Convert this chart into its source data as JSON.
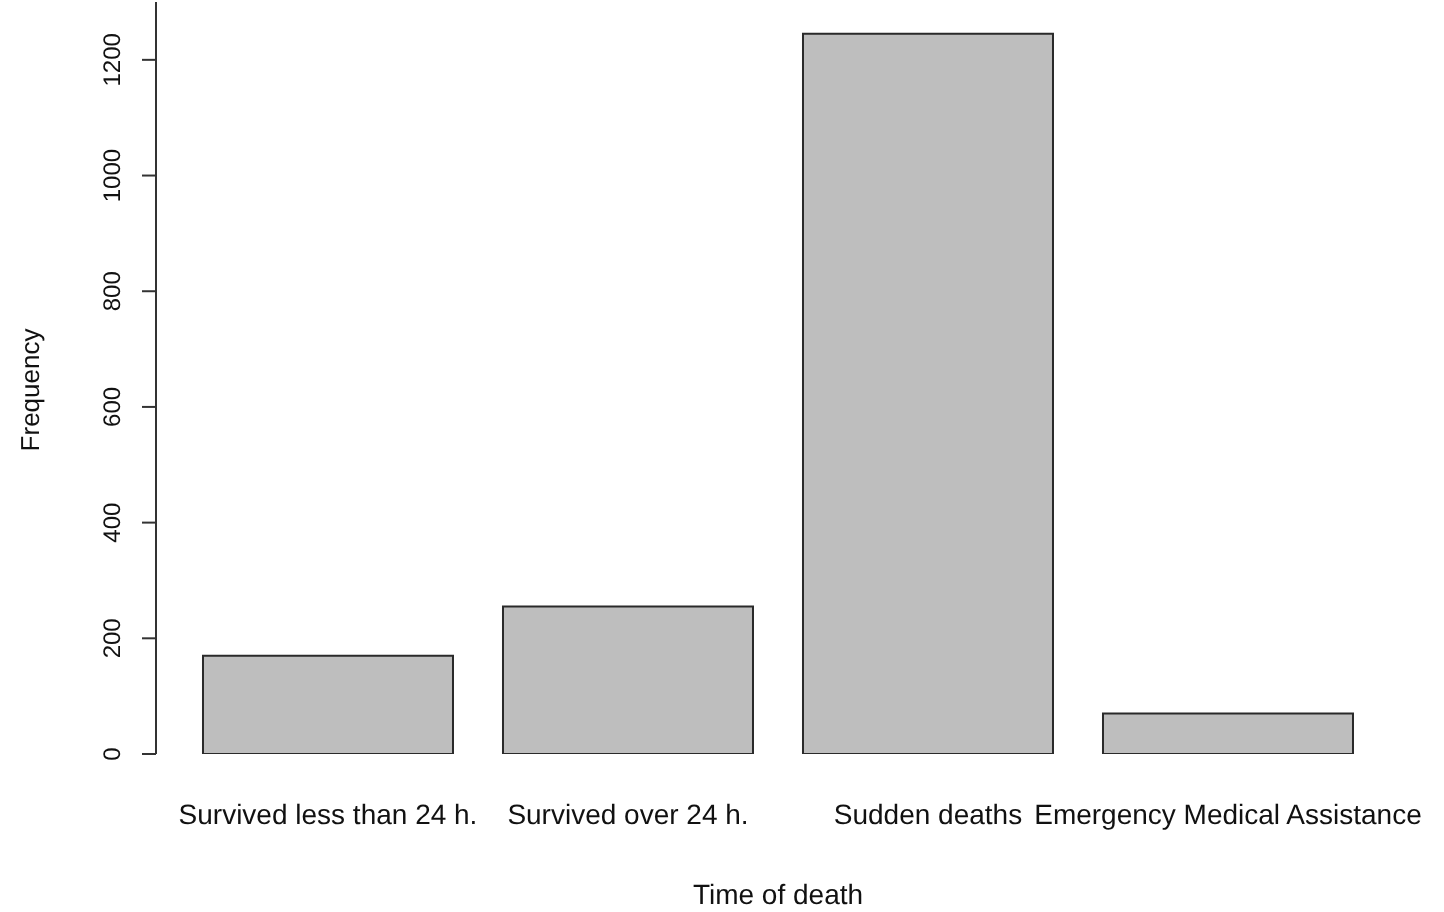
{
  "chart_data": {
    "type": "bar",
    "xlabel": "Time of death",
    "ylabel": "Frequency",
    "categories": [
      "Survived less than 24 h.",
      "Survived over 24 h.",
      "Sudden deaths",
      "Emergency Medical Assistance"
    ],
    "values": [
      170,
      255,
      1245,
      70
    ],
    "color": "#bebebe",
    "ylim": [
      0,
      1300
    ],
    "yticks": [
      0,
      200,
      400,
      600,
      800,
      1000,
      1200
    ]
  }
}
